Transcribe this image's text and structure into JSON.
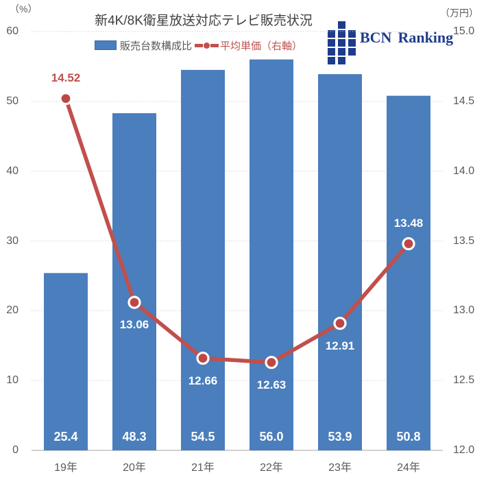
{
  "title": "新4K/8K衛星放送対応テレビ販売状況",
  "left_axis_unit": "（%）",
  "right_axis_unit": "（万円）",
  "legend": {
    "bar": "販売台数構成比",
    "line": "平均単価（右軸）"
  },
  "logo": {
    "bcn": "BCN",
    "ranking": "Ranking",
    "color": "#1E3C8C"
  },
  "colors": {
    "bar": "#4A7EBC",
    "line": "#C0504D",
    "marker_fill": "#BE4745",
    "marker_ring": "#FFFFFF",
    "axis_text": "#595959",
    "title_text": "#404040",
    "grid": "#C8C8C8",
    "baseline": "#C0C0C0",
    "white_label": "#FFFFFF"
  },
  "chart_data": {
    "type": "bar+line",
    "categories": [
      "19年",
      "20年",
      "21年",
      "22年",
      "23年",
      "24年"
    ],
    "series": [
      {
        "name": "販売台数構成比",
        "type": "bar",
        "axis": "left",
        "values": [
          25.4,
          48.3,
          54.5,
          56.0,
          53.9,
          50.8
        ],
        "labels": [
          "25.4",
          "48.3",
          "54.5",
          "56.0",
          "53.9",
          "50.8"
        ],
        "color": "#4A7EBC"
      },
      {
        "name": "平均単価（右軸）",
        "type": "line",
        "axis": "right",
        "values": [
          14.52,
          13.06,
          12.66,
          12.63,
          12.91,
          13.48
        ],
        "labels": [
          "14.52",
          "13.06",
          "12.66",
          "12.63",
          "12.91",
          "13.48"
        ],
        "label_placement": [
          "above",
          "below",
          "below",
          "below",
          "below",
          "above"
        ],
        "label_colors": [
          "#C0504D",
          "#FFFFFF",
          "#FFFFFF",
          "#FFFFFF",
          "#FFFFFF",
          "#FFFFFF"
        ],
        "color": "#C0504D"
      }
    ],
    "left_axis": {
      "min": 0,
      "max": 60,
      "step": 10,
      "tick_labels": [
        "0",
        "10",
        "20",
        "30",
        "40",
        "50",
        "60"
      ]
    },
    "right_axis": {
      "min": 12.0,
      "max": 15.0,
      "step": 0.5,
      "tick_labels": [
        "12.0",
        "12.5",
        "13.0",
        "13.5",
        "14.0",
        "14.5",
        "15.0"
      ]
    },
    "grid": "dotted horizontal",
    "legend_position": "top"
  }
}
